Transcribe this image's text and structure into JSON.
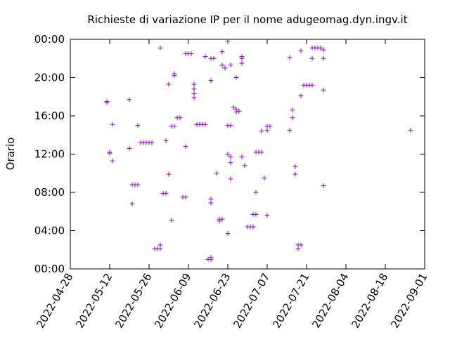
{
  "chart_data": {
    "type": "scatter",
    "title": "Richieste di variazione IP per il nome adugeomag.dyn.ingv.it",
    "xlabel": "",
    "ylabel": "Orario",
    "x_type": "date",
    "xlim": [
      "2022-04-28",
      "2022-09-01"
    ],
    "ylim": [
      0,
      24
    ],
    "x_ticks": [
      "2022-04-28",
      "2022-05-12",
      "2022-05-26",
      "2022-06-09",
      "2022-06-23",
      "2022-07-07",
      "2022-07-21",
      "2022-08-04",
      "2022-08-18",
      "2022-09-01"
    ],
    "y_ticks": [
      {
        "value": 0,
        "label": "00:00"
      },
      {
        "value": 4,
        "label": "04:00"
      },
      {
        "value": 8,
        "label": "08:00"
      },
      {
        "value": 12,
        "label": "12:00"
      },
      {
        "value": 16,
        "label": "16:00"
      },
      {
        "value": 20,
        "label": "20:00"
      },
      {
        "value": 24,
        "label": "00:00"
      }
    ],
    "marker": "+",
    "color": "#9400d3",
    "grid": false,
    "series": [
      {
        "points": [
          [
            "2022-05-11",
            17.5
          ],
          [
            "2022-05-11",
            17.4
          ],
          [
            "2022-05-12",
            12.1
          ],
          [
            "2022-05-12",
            12.2
          ],
          [
            "2022-05-13",
            15.1
          ],
          [
            "2022-05-13",
            11.3
          ],
          [
            "2022-05-19",
            17.7
          ],
          [
            "2022-05-19",
            12.6
          ],
          [
            "2022-05-20",
            8.8
          ],
          [
            "2022-05-20",
            6.8
          ],
          [
            "2022-05-21",
            8.8
          ],
          [
            "2022-05-22",
            8.8
          ],
          [
            "2022-05-22",
            15.0
          ],
          [
            "2022-05-23",
            13.2
          ],
          [
            "2022-05-24",
            13.2
          ],
          [
            "2022-05-25",
            13.2
          ],
          [
            "2022-05-26",
            13.2
          ],
          [
            "2022-05-27",
            13.2
          ],
          [
            "2022-05-28",
            2.1
          ],
          [
            "2022-05-29",
            2.1
          ],
          [
            "2022-05-30",
            2.1
          ],
          [
            "2022-05-30",
            2.5
          ],
          [
            "2022-05-30",
            23.1
          ],
          [
            "2022-05-31",
            7.9
          ],
          [
            "2022-06-01",
            7.9
          ],
          [
            "2022-06-01",
            13.4
          ],
          [
            "2022-06-02",
            9.9
          ],
          [
            "2022-06-02",
            19.3
          ],
          [
            "2022-06-03",
            5.1
          ],
          [
            "2022-06-03",
            14.9
          ],
          [
            "2022-06-04",
            14.9
          ],
          [
            "2022-06-04",
            20.2
          ],
          [
            "2022-06-04",
            20.4
          ],
          [
            "2022-06-05",
            15.8
          ],
          [
            "2022-06-06",
            15.8
          ],
          [
            "2022-06-07",
            7.5
          ],
          [
            "2022-06-08",
            7.5
          ],
          [
            "2022-06-08",
            22.5
          ],
          [
            "2022-06-08",
            12.8
          ],
          [
            "2022-06-09",
            22.5
          ],
          [
            "2022-06-10",
            22.5
          ],
          [
            "2022-06-11",
            17.9
          ],
          [
            "2022-06-11",
            18.3
          ],
          [
            "2022-06-11",
            18.8
          ],
          [
            "2022-06-11",
            19.3
          ],
          [
            "2022-06-12",
            15.1
          ],
          [
            "2022-06-13",
            15.1
          ],
          [
            "2022-06-14",
            15.1
          ],
          [
            "2022-06-15",
            15.1
          ],
          [
            "2022-06-15",
            22.2
          ],
          [
            "2022-06-16",
            1.0
          ],
          [
            "2022-06-17",
            1.0
          ],
          [
            "2022-06-17",
            1.2
          ],
          [
            "2022-06-17",
            6.9
          ],
          [
            "2022-06-17",
            7.3
          ],
          [
            "2022-06-17",
            19.7
          ],
          [
            "2022-06-17",
            22.0
          ],
          [
            "2022-06-18",
            22.0
          ],
          [
            "2022-06-19",
            10.0
          ],
          [
            "2022-06-20",
            5.0
          ],
          [
            "2022-06-20",
            5.2
          ],
          [
            "2022-06-21",
            5.2
          ],
          [
            "2022-06-21",
            22.7
          ],
          [
            "2022-06-21",
            21.3
          ],
          [
            "2022-06-22",
            21.0
          ],
          [
            "2022-06-23",
            3.7
          ],
          [
            "2022-06-23",
            15.0
          ],
          [
            "2022-06-23",
            12.0
          ],
          [
            "2022-06-23",
            23.8
          ],
          [
            "2022-06-24",
            15.0
          ],
          [
            "2022-06-24",
            11.7
          ],
          [
            "2022-06-24",
            11.1
          ],
          [
            "2022-06-24",
            9.4
          ],
          [
            "2022-06-24",
            21.3
          ],
          [
            "2022-06-25",
            16.9
          ],
          [
            "2022-06-26",
            16.4
          ],
          [
            "2022-06-26",
            16.7
          ],
          [
            "2022-06-26",
            20.0
          ],
          [
            "2022-06-27",
            16.5
          ],
          [
            "2022-06-28",
            11.7
          ],
          [
            "2022-06-28",
            21.5
          ],
          [
            "2022-06-28",
            22.0
          ],
          [
            "2022-06-28",
            22.2
          ],
          [
            "2022-06-29",
            10.8
          ],
          [
            "2022-06-30",
            4.4
          ],
          [
            "2022-07-01",
            4.4
          ],
          [
            "2022-07-02",
            4.4
          ],
          [
            "2022-07-02",
            5.7
          ],
          [
            "2022-07-03",
            5.7
          ],
          [
            "2022-07-03",
            8.0
          ],
          [
            "2022-07-03",
            12.2
          ],
          [
            "2022-07-04",
            12.2
          ],
          [
            "2022-07-05",
            12.2
          ],
          [
            "2022-07-05",
            14.4
          ],
          [
            "2022-07-06",
            9.5
          ],
          [
            "2022-07-07",
            14.5
          ],
          [
            "2022-07-07",
            14.9
          ],
          [
            "2022-07-07",
            5.6
          ],
          [
            "2022-07-08",
            14.9
          ],
          [
            "2022-07-15",
            22.1
          ],
          [
            "2022-07-15",
            14.5
          ],
          [
            "2022-07-16",
            15.8
          ],
          [
            "2022-07-16",
            16.6
          ],
          [
            "2022-07-17",
            9.9
          ],
          [
            "2022-07-17",
            10.7
          ],
          [
            "2022-07-18",
            2.5
          ],
          [
            "2022-07-18",
            2.1
          ],
          [
            "2022-07-19",
            2.5
          ],
          [
            "2022-07-19",
            18.1
          ],
          [
            "2022-07-19",
            22.8
          ],
          [
            "2022-07-20",
            19.2
          ],
          [
            "2022-07-21",
            19.2
          ],
          [
            "2022-07-22",
            19.2
          ],
          [
            "2022-07-23",
            19.2
          ],
          [
            "2022-07-23",
            22.0
          ],
          [
            "2022-07-23",
            23.1
          ],
          [
            "2022-07-24",
            23.1
          ],
          [
            "2022-07-25",
            23.1
          ],
          [
            "2022-07-26",
            23.1
          ],
          [
            "2022-07-27",
            22.9
          ],
          [
            "2022-07-27",
            22.0
          ],
          [
            "2022-07-27",
            18.7
          ],
          [
            "2022-07-27",
            8.7
          ],
          [
            "2022-08-27",
            14.5
          ]
        ]
      }
    ]
  }
}
